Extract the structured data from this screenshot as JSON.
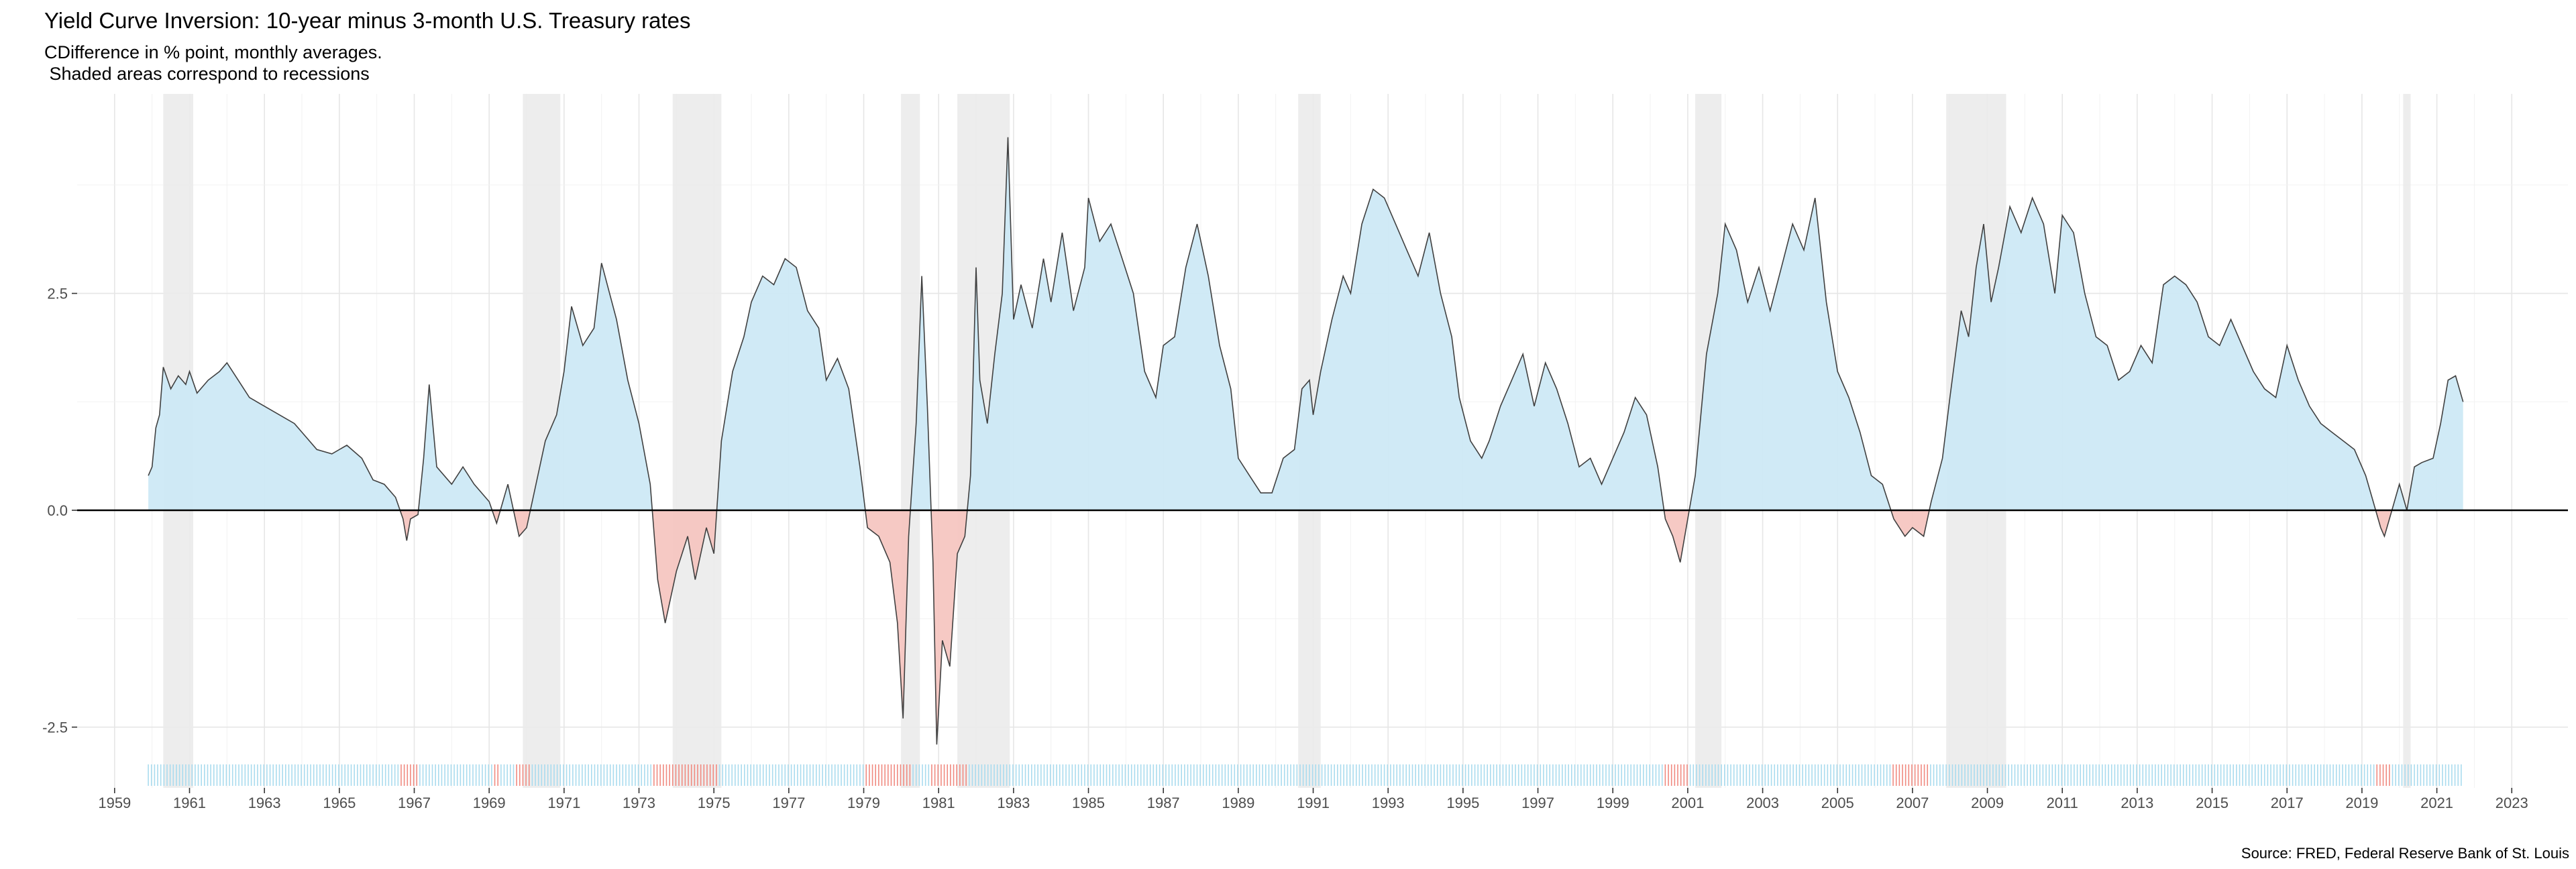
{
  "chart_data": {
    "type": "area",
    "title": "Yield Curve Inversion: 10-year minus 3-month U.S. Treasury rates",
    "subtitle": "CDifference in % point, monthly averages.\n Shaded areas correspond to recessions",
    "caption": "Source: FRED, Federal Reserve Bank of St. Louis",
    "xlabel": "",
    "ylabel": "",
    "xlim": [
      1958.0,
      2024.5
    ],
    "ylim": [
      -3.2,
      4.8
    ],
    "x_ticks": [
      1959,
      1961,
      1963,
      1965,
      1967,
      1969,
      1971,
      1973,
      1975,
      1977,
      1979,
      1981,
      1983,
      1985,
      1987,
      1989,
      1991,
      1993,
      1995,
      1997,
      1999,
      2001,
      2003,
      2005,
      2007,
      2009,
      2011,
      2013,
      2015,
      2017,
      2019,
      2021,
      2023
    ],
    "y_ticks": [
      -2.5,
      0.0,
      2.5
    ],
    "y_tick_labels": [
      "-2.5",
      "0.0",
      "2.5"
    ],
    "grid": true,
    "colors": {
      "positive": "#cde9f5",
      "negative": "#f6c6c1",
      "positive_rug": "#a9dbee",
      "negative_rug": "#f08a80",
      "recession": "#ebebeb",
      "line": "#404040"
    },
    "recessions": [
      [
        1960.3,
        1961.1
      ],
      [
        1969.9,
        1970.9
      ],
      [
        1973.9,
        1975.2
      ],
      [
        1980.0,
        1980.5
      ],
      [
        1981.5,
        1982.9
      ],
      [
        1990.6,
        1991.2
      ],
      [
        2001.2,
        2001.9
      ],
      [
        2007.9,
        2009.5
      ],
      [
        2020.1,
        2020.3
      ]
    ],
    "series": [
      {
        "values": [
          [
            1959.9,
            0.4
          ],
          [
            1960.0,
            0.5
          ],
          [
            1960.1,
            0.95
          ],
          [
            1960.2,
            1.1
          ],
          [
            1960.3,
            1.65
          ],
          [
            1960.5,
            1.4
          ],
          [
            1960.7,
            1.55
          ],
          [
            1960.9,
            1.45
          ],
          [
            1961.0,
            1.6
          ],
          [
            1961.2,
            1.35
          ],
          [
            1961.5,
            1.5
          ],
          [
            1961.8,
            1.6
          ],
          [
            1962.0,
            1.7
          ],
          [
            1962.3,
            1.5
          ],
          [
            1962.6,
            1.3
          ],
          [
            1963.0,
            1.2
          ],
          [
            1963.4,
            1.1
          ],
          [
            1963.8,
            1.0
          ],
          [
            1964.1,
            0.85
          ],
          [
            1964.4,
            0.7
          ],
          [
            1964.8,
            0.65
          ],
          [
            1965.2,
            0.75
          ],
          [
            1965.6,
            0.6
          ],
          [
            1965.9,
            0.35
          ],
          [
            1966.2,
            0.3
          ],
          [
            1966.5,
            0.15
          ],
          [
            1966.7,
            -0.1
          ],
          [
            1966.8,
            -0.35
          ],
          [
            1966.9,
            -0.1
          ],
          [
            1967.1,
            -0.05
          ],
          [
            1967.25,
            0.6
          ],
          [
            1967.4,
            1.45
          ],
          [
            1967.6,
            0.5
          ],
          [
            1968.0,
            0.3
          ],
          [
            1968.3,
            0.5
          ],
          [
            1968.6,
            0.3
          ],
          [
            1969.0,
            0.1
          ],
          [
            1969.2,
            -0.15
          ],
          [
            1969.5,
            0.3
          ],
          [
            1969.8,
            -0.3
          ],
          [
            1970.0,
            -0.2
          ],
          [
            1970.2,
            0.2
          ],
          [
            1970.5,
            0.8
          ],
          [
            1970.8,
            1.1
          ],
          [
            1971.0,
            1.6
          ],
          [
            1971.2,
            2.35
          ],
          [
            1971.5,
            1.9
          ],
          [
            1971.8,
            2.1
          ],
          [
            1972.0,
            2.85
          ],
          [
            1972.4,
            2.2
          ],
          [
            1972.7,
            1.5
          ],
          [
            1973.0,
            1.0
          ],
          [
            1973.3,
            0.3
          ],
          [
            1973.5,
            -0.8
          ],
          [
            1973.7,
            -1.3
          ],
          [
            1974.0,
            -0.7
          ],
          [
            1974.3,
            -0.3
          ],
          [
            1974.5,
            -0.8
          ],
          [
            1974.8,
            -0.2
          ],
          [
            1975.0,
            -0.5
          ],
          [
            1975.2,
            0.8
          ],
          [
            1975.5,
            1.6
          ],
          [
            1975.8,
            2.0
          ],
          [
            1976.0,
            2.4
          ],
          [
            1976.3,
            2.7
          ],
          [
            1976.6,
            2.6
          ],
          [
            1976.9,
            2.9
          ],
          [
            1977.2,
            2.8
          ],
          [
            1977.5,
            2.3
          ],
          [
            1977.8,
            2.1
          ],
          [
            1978.0,
            1.5
          ],
          [
            1978.3,
            1.75
          ],
          [
            1978.6,
            1.4
          ],
          [
            1978.9,
            0.5
          ],
          [
            1979.1,
            -0.2
          ],
          [
            1979.4,
            -0.3
          ],
          [
            1979.7,
            -0.6
          ],
          [
            1979.9,
            -1.3
          ],
          [
            1980.05,
            -2.4
          ],
          [
            1980.2,
            -0.3
          ],
          [
            1980.4,
            1.0
          ],
          [
            1980.55,
            2.7
          ],
          [
            1980.7,
            1.2
          ],
          [
            1980.85,
            -0.6
          ],
          [
            1980.95,
            -2.7
          ],
          [
            1981.1,
            -1.5
          ],
          [
            1981.3,
            -1.8
          ],
          [
            1981.5,
            -0.5
          ],
          [
            1981.7,
            -0.3
          ],
          [
            1981.85,
            0.4
          ],
          [
            1982.0,
            2.8
          ],
          [
            1982.1,
            1.5
          ],
          [
            1982.3,
            1.0
          ],
          [
            1982.5,
            1.8
          ],
          [
            1982.7,
            2.5
          ],
          [
            1982.85,
            4.3
          ],
          [
            1983.0,
            2.2
          ],
          [
            1983.2,
            2.6
          ],
          [
            1983.5,
            2.1
          ],
          [
            1983.8,
            2.9
          ],
          [
            1984.0,
            2.4
          ],
          [
            1984.3,
            3.2
          ],
          [
            1984.6,
            2.3
          ],
          [
            1984.9,
            2.8
          ],
          [
            1985.0,
            3.6
          ],
          [
            1985.3,
            3.1
          ],
          [
            1985.6,
            3.3
          ],
          [
            1985.9,
            2.9
          ],
          [
            1986.2,
            2.5
          ],
          [
            1986.5,
            1.6
          ],
          [
            1986.8,
            1.3
          ],
          [
            1987.0,
            1.9
          ],
          [
            1987.3,
            2.0
          ],
          [
            1987.6,
            2.8
          ],
          [
            1987.9,
            3.3
          ],
          [
            1988.2,
            2.7
          ],
          [
            1988.5,
            1.9
          ],
          [
            1988.8,
            1.4
          ],
          [
            1989.0,
            0.6
          ],
          [
            1989.3,
            0.4
          ],
          [
            1989.6,
            0.2
          ],
          [
            1989.9,
            0.2
          ],
          [
            1990.2,
            0.6
          ],
          [
            1990.5,
            0.7
          ],
          [
            1990.7,
            1.4
          ],
          [
            1990.9,
            1.5
          ],
          [
            1991.0,
            1.1
          ],
          [
            1991.2,
            1.6
          ],
          [
            1991.5,
            2.2
          ],
          [
            1991.8,
            2.7
          ],
          [
            1992.0,
            2.5
          ],
          [
            1992.3,
            3.3
          ],
          [
            1992.6,
            3.7
          ],
          [
            1992.9,
            3.6
          ],
          [
            1993.2,
            3.3
          ],
          [
            1993.5,
            3.0
          ],
          [
            1993.8,
            2.7
          ],
          [
            1994.1,
            3.2
          ],
          [
            1994.4,
            2.5
          ],
          [
            1994.7,
            2.0
          ],
          [
            1994.9,
            1.3
          ],
          [
            1995.2,
            0.8
          ],
          [
            1995.5,
            0.6
          ],
          [
            1995.7,
            0.8
          ],
          [
            1996.0,
            1.2
          ],
          [
            1996.3,
            1.5
          ],
          [
            1996.6,
            1.8
          ],
          [
            1996.9,
            1.2
          ],
          [
            1997.2,
            1.7
          ],
          [
            1997.5,
            1.4
          ],
          [
            1997.8,
            1.0
          ],
          [
            1998.1,
            0.5
          ],
          [
            1998.4,
            0.6
          ],
          [
            1998.7,
            0.3
          ],
          [
            1999.0,
            0.6
          ],
          [
            1999.3,
            0.9
          ],
          [
            1999.6,
            1.3
          ],
          [
            1999.9,
            1.1
          ],
          [
            2000.2,
            0.5
          ],
          [
            2000.4,
            -0.1
          ],
          [
            2000.6,
            -0.3
          ],
          [
            2000.8,
            -0.6
          ],
          [
            2001.0,
            -0.1
          ],
          [
            2001.2,
            0.4
          ],
          [
            2001.5,
            1.8
          ],
          [
            2001.8,
            2.5
          ],
          [
            2002.0,
            3.3
          ],
          [
            2002.3,
            3.0
          ],
          [
            2002.6,
            2.4
          ],
          [
            2002.9,
            2.8
          ],
          [
            2003.2,
            2.3
          ],
          [
            2003.5,
            2.8
          ],
          [
            2003.8,
            3.3
          ],
          [
            2004.1,
            3.0
          ],
          [
            2004.4,
            3.6
          ],
          [
            2004.7,
            2.4
          ],
          [
            2005.0,
            1.6
          ],
          [
            2005.3,
            1.3
          ],
          [
            2005.6,
            0.9
          ],
          [
            2005.9,
            0.4
          ],
          [
            2006.2,
            0.3
          ],
          [
            2006.5,
            -0.1
          ],
          [
            2006.8,
            -0.3
          ],
          [
            2007.0,
            -0.2
          ],
          [
            2007.3,
            -0.3
          ],
          [
            2007.5,
            0.1
          ],
          [
            2007.8,
            0.6
          ],
          [
            2008.0,
            1.3
          ],
          [
            2008.3,
            2.3
          ],
          [
            2008.5,
            2.0
          ],
          [
            2008.7,
            2.8
          ],
          [
            2008.9,
            3.3
          ],
          [
            2009.1,
            2.4
          ],
          [
            2009.3,
            2.8
          ],
          [
            2009.6,
            3.5
          ],
          [
            2009.9,
            3.2
          ],
          [
            2010.2,
            3.6
          ],
          [
            2010.5,
            3.3
          ],
          [
            2010.8,
            2.5
          ],
          [
            2011.0,
            3.4
          ],
          [
            2011.3,
            3.2
          ],
          [
            2011.6,
            2.5
          ],
          [
            2011.9,
            2.0
          ],
          [
            2012.2,
            1.9
          ],
          [
            2012.5,
            1.5
          ],
          [
            2012.8,
            1.6
          ],
          [
            2013.1,
            1.9
          ],
          [
            2013.4,
            1.7
          ],
          [
            2013.7,
            2.6
          ],
          [
            2014.0,
            2.7
          ],
          [
            2014.3,
            2.6
          ],
          [
            2014.6,
            2.4
          ],
          [
            2014.9,
            2.0
          ],
          [
            2015.2,
            1.9
          ],
          [
            2015.5,
            2.2
          ],
          [
            2015.8,
            1.9
          ],
          [
            2016.1,
            1.6
          ],
          [
            2016.4,
            1.4
          ],
          [
            2016.7,
            1.3
          ],
          [
            2017.0,
            1.9
          ],
          [
            2017.3,
            1.5
          ],
          [
            2017.6,
            1.2
          ],
          [
            2017.9,
            1.0
          ],
          [
            2018.2,
            0.9
          ],
          [
            2018.5,
            0.8
          ],
          [
            2018.8,
            0.7
          ],
          [
            2019.1,
            0.4
          ],
          [
            2019.3,
            0.1
          ],
          [
            2019.5,
            -0.2
          ],
          [
            2019.6,
            -0.3
          ],
          [
            2019.8,
            0.0
          ],
          [
            2020.0,
            0.3
          ],
          [
            2020.2,
            0.0
          ],
          [
            2020.4,
            0.5
          ],
          [
            2020.6,
            0.55
          ],
          [
            2020.9,
            0.6
          ],
          [
            2021.1,
            1.0
          ],
          [
            2021.3,
            1.5
          ],
          [
            2021.5,
            1.55
          ],
          [
            2021.7,
            1.25
          ]
        ]
      }
    ]
  }
}
